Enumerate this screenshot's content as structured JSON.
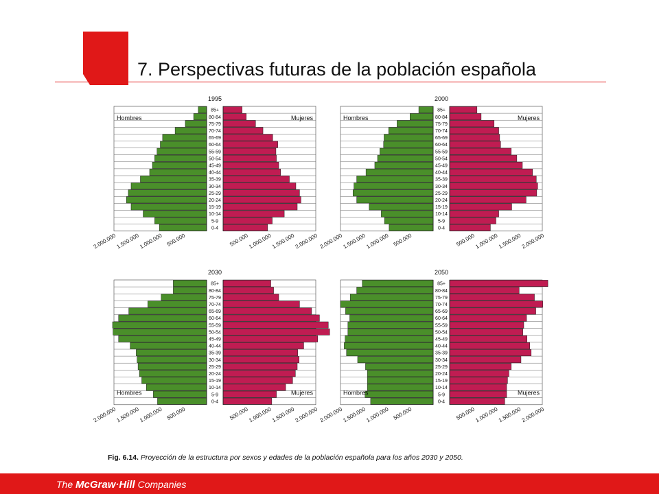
{
  "slide": {
    "title": "7. Perspectivas futuras de la población española",
    "caption_fig": "Fig. 6.14.",
    "caption_text": "Proyección de la estructura por sexos y edades de la población española para los años 2030 y 2050.",
    "footer_pre": "The ",
    "footer_brand": "McGraw·Hill",
    "footer_post": " Companies",
    "colors": {
      "accent": "#e01818",
      "men": "#4a8f2a",
      "women": "#c01c52"
    }
  },
  "chart_data": [
    {
      "type": "bar",
      "subtype": "population-pyramid",
      "title": "1995",
      "age_groups": [
        "0-4",
        "5-9",
        "10-14",
        "15-19",
        "20-24",
        "25-29",
        "30-34",
        "35-39",
        "40-44",
        "45-49",
        "50-54",
        "55-59",
        "60-64",
        "65-69",
        "70-74",
        "75-79",
        "80-84",
        "85+"
      ],
      "men_label": "Hombres",
      "women_label": "Mujeres",
      "sex_label_pos": "top",
      "xlim": [
        0,
        2000000
      ],
      "ticks": [
        "2.000.000",
        "1.500.000",
        "1.000.000",
        "500.000",
        "500.000",
        "1.000.000",
        "1.500.000",
        "2.000.000"
      ],
      "series": [
        {
          "name": "Hombres",
          "values": [
            1020000,
            1120000,
            1370000,
            1630000,
            1730000,
            1690000,
            1630000,
            1430000,
            1230000,
            1170000,
            1120000,
            1070000,
            1000000,
            950000,
            680000,
            460000,
            280000,
            180000
          ]
        },
        {
          "name": "Mujeres",
          "values": [
            960000,
            1060000,
            1320000,
            1600000,
            1680000,
            1650000,
            1570000,
            1430000,
            1240000,
            1200000,
            1150000,
            1140000,
            1180000,
            1070000,
            860000,
            700000,
            500000,
            410000
          ]
        }
      ]
    },
    {
      "type": "bar",
      "subtype": "population-pyramid",
      "title": "2000",
      "age_groups": [
        "0-4",
        "5-9",
        "10-14",
        "15-19",
        "20-24",
        "25-29",
        "30-34",
        "35-39",
        "40-44",
        "45-49",
        "50-54",
        "55-59",
        "60-64",
        "65-69",
        "70-74",
        "75-79",
        "80-84",
        "85+"
      ],
      "men_label": "Hombres",
      "women_label": "Mujeres",
      "sex_label_pos": "top",
      "xlim": [
        0,
        2000000
      ],
      "ticks": [
        "2.000.000",
        "1.500.000",
        "1.000.000",
        "500.000",
        "500.000",
        "1.000.000",
        "1.500.000",
        "2.000.000"
      ],
      "series": [
        {
          "name": "Hombres",
          "values": [
            950000,
            1050000,
            1120000,
            1380000,
            1650000,
            1730000,
            1710000,
            1650000,
            1450000,
            1260000,
            1200000,
            1150000,
            1070000,
            1060000,
            960000,
            780000,
            500000,
            310000
          ]
        },
        {
          "name": "Mujeres",
          "values": [
            880000,
            1000000,
            1060000,
            1340000,
            1650000,
            1880000,
            1900000,
            1870000,
            1790000,
            1570000,
            1450000,
            1330000,
            1100000,
            1080000,
            1060000,
            960000,
            680000,
            590000
          ]
        }
      ]
    },
    {
      "type": "bar",
      "subtype": "population-pyramid",
      "title": "2030",
      "age_groups": [
        "0-4",
        "5-9",
        "10-14",
        "15-19",
        "20-24",
        "25-29",
        "30-34",
        "35-39",
        "40-44",
        "45-49",
        "50-54",
        "55-59",
        "60-64",
        "65-69",
        "70-74",
        "75-79",
        "80-84",
        "85+"
      ],
      "men_label": "Hombres",
      "women_label": "Mujeres",
      "sex_label_pos": "bottom",
      "xlim": [
        0,
        2000000
      ],
      "ticks": [
        "2.000.000",
        "1.500.000",
        "1.000.000",
        "500.000",
        "500.000",
        "1.000.000",
        "1.500.000",
        "2.000.000"
      ],
      "series": [
        {
          "name": "Hombres",
          "values": [
            1060000,
            1150000,
            1300000,
            1400000,
            1450000,
            1480000,
            1500000,
            1520000,
            1650000,
            1900000,
            2020000,
            2030000,
            1900000,
            1680000,
            1270000,
            980000,
            720000,
            720000
          ]
        },
        {
          "name": "Mujeres",
          "values": [
            1050000,
            1150000,
            1350000,
            1500000,
            1560000,
            1600000,
            1640000,
            1610000,
            1740000,
            2040000,
            2300000,
            2270000,
            2080000,
            1910000,
            1650000,
            1200000,
            1090000,
            1030000
          ]
        }
      ]
    },
    {
      "type": "bar",
      "subtype": "population-pyramid",
      "title": "2050",
      "age_groups": [
        "0-4",
        "5-9",
        "10-14",
        "15-19",
        "20-24",
        "25-29",
        "30-34",
        "35-39",
        "40-44",
        "45-49",
        "50-54",
        "55-59",
        "60-64",
        "65-69",
        "70-74",
        "75-79",
        "80-84",
        "85+"
      ],
      "men_label": "Hombres",
      "women_label": "Mujeres",
      "sex_label_pos": "bottom",
      "xlim": [
        0,
        2000000
      ],
      "ticks": [
        "2.000.000",
        "1.500.000",
        "1.000.000",
        "500.000",
        "500.000",
        "1.000.000",
        "1.500.000",
        "2.000.000"
      ],
      "series": [
        {
          "name": "Hombres",
          "values": [
            1350000,
            1470000,
            1420000,
            1420000,
            1420000,
            1460000,
            1630000,
            1870000,
            1920000,
            1900000,
            1840000,
            1840000,
            1800000,
            1890000,
            2000000,
            1790000,
            1650000,
            1530000
          ]
        },
        {
          "name": "Mujeres",
          "values": [
            1190000,
            1230000,
            1230000,
            1250000,
            1280000,
            1330000,
            1540000,
            1760000,
            1730000,
            1670000,
            1580000,
            1600000,
            1660000,
            1860000,
            2010000,
            1830000,
            1500000,
            2120000
          ]
        }
      ]
    }
  ]
}
